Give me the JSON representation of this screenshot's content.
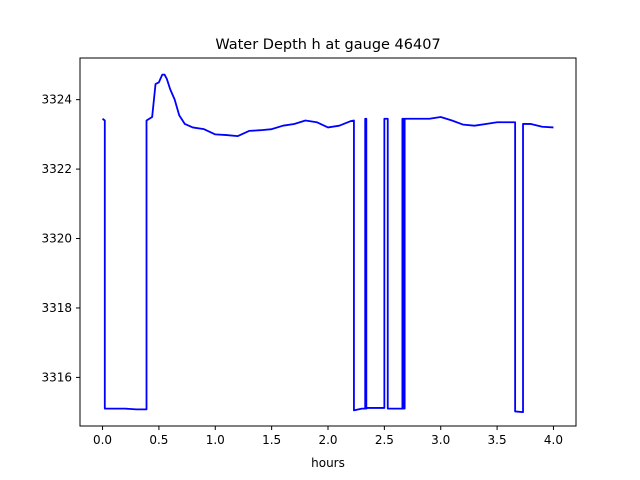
{
  "chart_data": {
    "type": "line",
    "title": "Water Depth h at gauge 46407",
    "xlabel": "hours",
    "ylabel": "",
    "xlim": [
      -0.2,
      4.2
    ],
    "ylim": [
      3314.6,
      3325.2
    ],
    "xticks": [
      0.0,
      0.5,
      1.0,
      1.5,
      2.0,
      2.5,
      3.0,
      3.5,
      4.0
    ],
    "xtick_labels": [
      "0.0",
      "0.5",
      "1.0",
      "1.5",
      "2.0",
      "2.5",
      "3.0",
      "3.5",
      "4.0"
    ],
    "yticks": [
      3316,
      3318,
      3320,
      3322,
      3324
    ],
    "ytick_labels": [
      "3316",
      "3318",
      "3320",
      "3322",
      "3324"
    ],
    "grid": false,
    "series": [
      {
        "color": "#0000ff",
        "x": [
          0.0,
          0.02,
          0.02,
          0.1,
          0.2,
          0.3,
          0.38,
          0.39,
          0.39,
          0.44,
          0.47,
          0.5,
          0.53,
          0.55,
          0.57,
          0.6,
          0.64,
          0.68,
          0.73,
          0.8,
          0.9,
          1.0,
          1.1,
          1.2,
          1.3,
          1.4,
          1.5,
          1.6,
          1.7,
          1.8,
          1.9,
          2.0,
          2.1,
          2.2,
          2.23,
          2.23,
          2.3,
          2.33,
          2.33,
          2.34,
          2.34,
          2.35,
          2.35,
          2.4,
          2.48,
          2.5,
          2.5,
          2.53,
          2.53,
          2.55,
          2.55,
          2.65,
          2.66,
          2.66,
          2.67,
          2.67,
          2.68,
          2.68,
          2.69,
          2.69,
          2.8,
          2.9,
          3.0,
          3.1,
          3.2,
          3.3,
          3.4,
          3.5,
          3.55,
          3.65,
          3.66,
          3.66,
          3.73,
          3.73,
          3.8,
          3.9,
          4.0
        ],
        "y": [
          3323.45,
          3323.4,
          3315.1,
          3315.1,
          3315.1,
          3315.08,
          3315.08,
          3315.08,
          3323.4,
          3323.5,
          3324.45,
          3324.5,
          3324.72,
          3324.72,
          3324.6,
          3324.3,
          3324.0,
          3323.55,
          3323.3,
          3323.2,
          3323.15,
          3323.0,
          3322.98,
          3322.95,
          3323.1,
          3323.12,
          3323.15,
          3323.25,
          3323.3,
          3323.4,
          3323.35,
          3323.2,
          3323.25,
          3323.38,
          3323.4,
          3315.05,
          3315.1,
          3315.1,
          3323.45,
          3323.45,
          3315.1,
          3315.12,
          3315.12,
          3315.12,
          3315.12,
          3315.12,
          3323.45,
          3323.45,
          3315.1,
          3315.1,
          3315.1,
          3315.1,
          3315.1,
          3323.45,
          3323.45,
          3315.1,
          3315.1,
          3323.45,
          3323.45,
          3323.45,
          3323.45,
          3323.45,
          3323.5,
          3323.4,
          3323.28,
          3323.25,
          3323.3,
          3323.35,
          3323.35,
          3323.35,
          3323.35,
          3315.02,
          3315.0,
          3323.3,
          3323.3,
          3323.22,
          3323.2
        ]
      }
    ]
  }
}
